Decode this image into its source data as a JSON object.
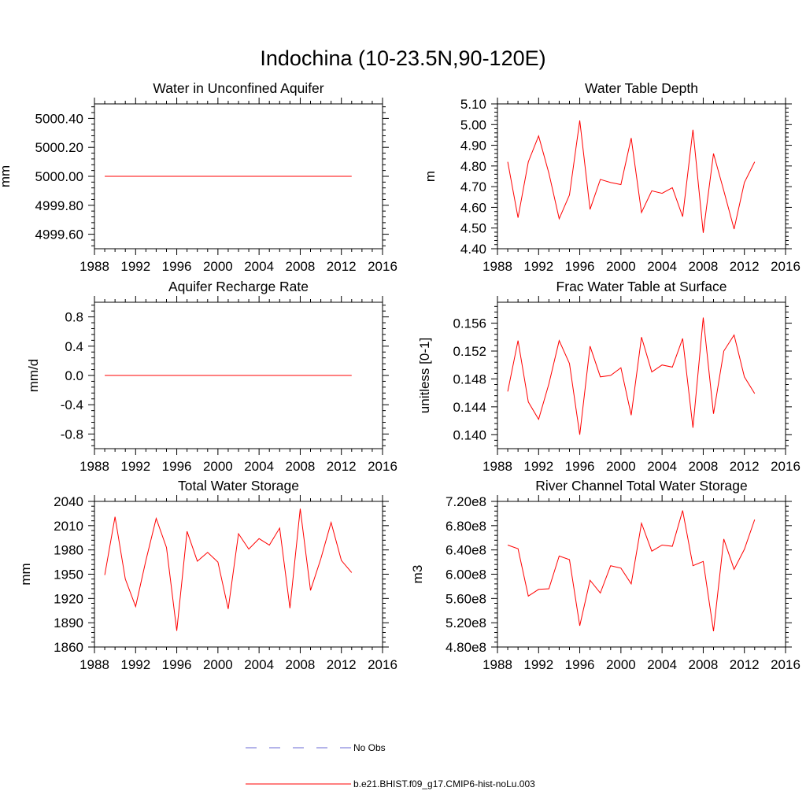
{
  "title": "Indochina (10-23.5N,90-120E)",
  "colors": {
    "model": "#ff0000",
    "obs": "#6a6ad6",
    "frame": "#000000"
  },
  "legend": [
    {
      "label": "No Obs",
      "style": "dashed",
      "color": "#6a6ad6"
    },
    {
      "label": "b.e21.BHIST.f09_g17.CMIP6-hist-noLu.003",
      "style": "solid",
      "color": "#ff0000"
    }
  ],
  "chart_data": [
    {
      "type": "line",
      "title": "Water in Unconfined Aquifer",
      "ylabel": "mm",
      "xlim": [
        1988,
        2016
      ],
      "ylim": [
        4999.5,
        5000.5
      ],
      "xticks": [
        1988,
        1992,
        1996,
        2000,
        2004,
        2008,
        2012,
        2016
      ],
      "yticks": [
        4999.6,
        4999.8,
        5000.0,
        5000.2,
        5000.4
      ],
      "ytick_labels": [
        "4999.60",
        "4999.80",
        "5000.00",
        "5000.20",
        "5000.40"
      ],
      "x": [
        1989,
        1990,
        1991,
        1992,
        1993,
        1994,
        1995,
        1996,
        1997,
        1998,
        1999,
        2000,
        2001,
        2002,
        2003,
        2004,
        2005,
        2006,
        2007,
        2008,
        2009,
        2010,
        2011,
        2012,
        2013
      ],
      "series": [
        {
          "values": [
            5000,
            5000,
            5000,
            5000,
            5000,
            5000,
            5000,
            5000,
            5000,
            5000,
            5000,
            5000,
            5000,
            5000,
            5000,
            5000,
            5000,
            5000,
            5000,
            5000,
            5000,
            5000,
            5000,
            5000,
            5000
          ]
        }
      ]
    },
    {
      "type": "line",
      "title": "Water Table Depth",
      "ylabel": "m",
      "xlim": [
        1988,
        2016
      ],
      "ylim": [
        4.4,
        5.1
      ],
      "xticks": [
        1988,
        1992,
        1996,
        2000,
        2004,
        2008,
        2012,
        2016
      ],
      "yticks": [
        4.4,
        4.5,
        4.6,
        4.7,
        4.8,
        4.9,
        5.0,
        5.1
      ],
      "ytick_labels": [
        "4.40",
        "4.50",
        "4.60",
        "4.70",
        "4.80",
        "4.90",
        "5.00",
        "5.10"
      ],
      "x": [
        1989,
        1990,
        1991,
        1992,
        1993,
        1994,
        1995,
        1996,
        1997,
        1998,
        1999,
        2000,
        2001,
        2002,
        2003,
        2004,
        2005,
        2006,
        2007,
        2008,
        2009,
        2010,
        2011,
        2012,
        2013
      ],
      "series": [
        {
          "values": [
            4.82,
            4.55,
            4.82,
            4.945,
            4.765,
            4.545,
            4.66,
            5.02,
            4.59,
            4.735,
            4.72,
            4.71,
            4.935,
            4.575,
            4.68,
            4.668,
            4.695,
            4.555,
            4.975,
            4.477,
            4.86,
            4.68,
            4.495,
            4.72,
            4.82
          ]
        }
      ]
    },
    {
      "type": "line",
      "title": "Aquifer Recharge Rate",
      "ylabel": "mm/d",
      "xlim": [
        1988,
        2016
      ],
      "ylim": [
        -1.0,
        1.0
      ],
      "xticks": [
        1988,
        1992,
        1996,
        2000,
        2004,
        2008,
        2012,
        2016
      ],
      "yticks": [
        -0.8,
        -0.4,
        0.0,
        0.4,
        0.8
      ],
      "ytick_labels": [
        "-0.8",
        "-0.4",
        "0.0",
        "0.4",
        "0.8"
      ],
      "x": [
        1989,
        1990,
        1991,
        1992,
        1993,
        1994,
        1995,
        1996,
        1997,
        1998,
        1999,
        2000,
        2001,
        2002,
        2003,
        2004,
        2005,
        2006,
        2007,
        2008,
        2009,
        2010,
        2011,
        2012,
        2013
      ],
      "series": [
        {
          "values": [
            0,
            0,
            0,
            0,
            0,
            0,
            0,
            0,
            0,
            0,
            0,
            0,
            0,
            0,
            0,
            0,
            0,
            0,
            0,
            0,
            0,
            0,
            0,
            0,
            0
          ]
        }
      ]
    },
    {
      "type": "line",
      "title": "Frac Water Table at Surface",
      "ylabel": "unitless [0-1]",
      "xlim": [
        1988,
        2016
      ],
      "ylim": [
        0.138,
        0.159
      ],
      "xticks": [
        1988,
        1992,
        1996,
        2000,
        2004,
        2008,
        2012,
        2016
      ],
      "yticks": [
        0.14,
        0.144,
        0.148,
        0.152,
        0.156
      ],
      "ytick_labels": [
        "0.140",
        "0.144",
        "0.148",
        "0.152",
        "0.156"
      ],
      "x": [
        1989,
        1990,
        1991,
        1992,
        1993,
        1994,
        1995,
        1996,
        1997,
        1998,
        1999,
        2000,
        2001,
        2002,
        2003,
        2004,
        2005,
        2006,
        2007,
        2008,
        2009,
        2010,
        2011,
        2012,
        2013
      ],
      "series": [
        {
          "values": [
            0.1462,
            0.1535,
            0.1447,
            0.1422,
            0.1473,
            0.1535,
            0.1502,
            0.14,
            0.1527,
            0.1483,
            0.1485,
            0.1496,
            0.1428,
            0.154,
            0.149,
            0.15,
            0.1497,
            0.1538,
            0.141,
            0.1568,
            0.143,
            0.152,
            0.1543,
            0.1483,
            0.1459
          ]
        }
      ]
    },
    {
      "type": "line",
      "title": "Total Water Storage",
      "ylabel": "mm",
      "xlim": [
        1988,
        2016
      ],
      "ylim": [
        1860,
        2040
      ],
      "xticks": [
        1988,
        1992,
        1996,
        2000,
        2004,
        2008,
        2012,
        2016
      ],
      "yticks": [
        1860,
        1890,
        1920,
        1950,
        1980,
        2010,
        2040
      ],
      "ytick_labels": [
        "1860",
        "1890",
        "1920",
        "1950",
        "1980",
        "2010",
        "2040"
      ],
      "x": [
        1989,
        1990,
        1991,
        1992,
        1993,
        1994,
        1995,
        1996,
        1997,
        1998,
        1999,
        2000,
        2001,
        2002,
        2003,
        2004,
        2005,
        2006,
        2007,
        2008,
        2009,
        2010,
        2011,
        2012,
        2013
      ],
      "series": [
        {
          "values": [
            1949,
            2021,
            1944,
            1910,
            1967,
            2019,
            1983,
            1880,
            2003,
            1966,
            1977,
            1965,
            1907,
            2000,
            1981,
            1994,
            1986,
            2007,
            1908,
            2031,
            1930,
            1969,
            2014,
            1967,
            1952
          ]
        }
      ]
    },
    {
      "type": "line",
      "title": "River Channel Total Water Storage",
      "ylabel": "m3",
      "xlim": [
        1988,
        2016
      ],
      "ylim": [
        480000000.0,
        720000000.0
      ],
      "xticks": [
        1988,
        1992,
        1996,
        2000,
        2004,
        2008,
        2012,
        2016
      ],
      "yticks": [
        480000000.0,
        520000000.0,
        560000000.0,
        600000000.0,
        640000000.0,
        680000000.0,
        720000000.0
      ],
      "ytick_labels": [
        "4.80e8",
        "5.20e8",
        "5.60e8",
        "6.00e8",
        "6.40e8",
        "6.80e8",
        "7.20e8"
      ],
      "x": [
        1989,
        1990,
        1991,
        1992,
        1993,
        1994,
        1995,
        1996,
        1997,
        1998,
        1999,
        2000,
        2001,
        2002,
        2003,
        2004,
        2005,
        2006,
        2007,
        2008,
        2009,
        2010,
        2011,
        2012,
        2013
      ],
      "series": [
        {
          "values": [
            648000000.0,
            642000000.0,
            564000000.0,
            575000000.0,
            576000000.0,
            630000000.0,
            624000000.0,
            515000000.0,
            590000000.0,
            569000000.0,
            614000000.0,
            610000000.0,
            584000000.0,
            684000000.0,
            638000000.0,
            648000000.0,
            646000000.0,
            705000000.0,
            614000000.0,
            621000000.0,
            506000000.0,
            658000000.0,
            608000000.0,
            641000000.0,
            690000000.0
          ]
        }
      ]
    }
  ]
}
